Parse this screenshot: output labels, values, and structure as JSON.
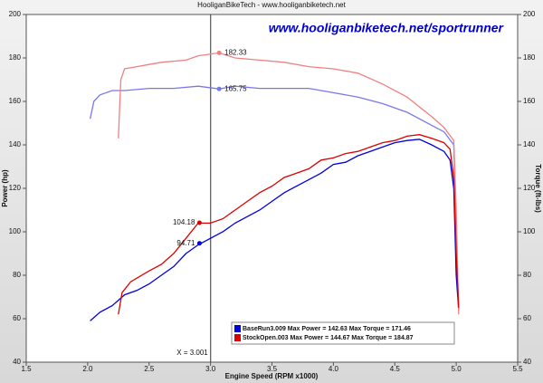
{
  "chart_data": {
    "type": "line",
    "title": "HooliganBikeTech - www.hooliganbiketech.net",
    "watermark": "www.hooliganbiketech.net/sportrunner",
    "x_label": "Engine Speed (RPM x1000)",
    "y_label": "Power (hp)",
    "y2_label": "Torque (ft-lbs)",
    "xlim": [
      1.5,
      5.5
    ],
    "xticks": [
      1.5,
      {
        "value": 2,
        "label": "2.0"
      },
      2.5,
      {
        "value": 3,
        "label": "3.0"
      },
      3.5,
      {
        "value": 4,
        "label": "4.0"
      },
      4.5,
      {
        "value": 5,
        "label": "5.0"
      },
      5.5
    ],
    "ylim": [
      40,
      200
    ],
    "yticks": [
      40,
      60,
      80,
      100,
      120,
      140,
      160,
      180,
      200
    ],
    "y2lim": [
      40,
      200
    ],
    "y2ticks": [
      40,
      60,
      80,
      100,
      120,
      140,
      160,
      180,
      200
    ],
    "cursor": {
      "x": 3.001,
      "label": "X = 3.001"
    },
    "series": [
      {
        "name": "BaseRun3.009 Max Power = 142.63 Max Torque = 171.46",
        "color": "#0000dd",
        "torque_color": "#7878ee",
        "x": [
          2.02,
          2.1,
          2.2,
          2.3,
          2.4,
          2.5,
          2.6,
          2.7,
          2.8,
          2.9,
          3.0,
          3.1,
          3.2,
          3.3,
          3.4,
          3.5,
          3.6,
          3.7,
          3.8,
          3.9,
          4.0,
          4.1,
          4.2,
          4.3,
          4.4,
          4.5,
          4.6,
          4.7,
          4.8,
          4.9,
          4.95,
          4.98,
          5.0,
          5.02
        ],
        "values": [
          59,
          63,
          66,
          71,
          73,
          76,
          80,
          84,
          90,
          94,
          97,
          100,
          104,
          107,
          110,
          114,
          118,
          121,
          124,
          127,
          131,
          132,
          135,
          137,
          139,
          141,
          142,
          142.6,
          140,
          137,
          133,
          120,
          80,
          64
        ],
        "torque_x": [
          2.02,
          2.05,
          2.1,
          2.2,
          2.3,
          2.5,
          2.7,
          2.9,
          3.07,
          3.2,
          3.4,
          3.6,
          3.8,
          4.0,
          4.2,
          4.4,
          4.6,
          4.8,
          4.9,
          4.98,
          5.0,
          5.02
        ],
        "torque_values": [
          152,
          160,
          163,
          165,
          165,
          166,
          166,
          167,
          165.75,
          167,
          166,
          166,
          166,
          164,
          162,
          159,
          155,
          149,
          146,
          140,
          100,
          65
        ]
      },
      {
        "name": "StockOpen.003 Max Power = 144.67 Max Torque = 184.87",
        "color": "#dd0000",
        "torque_color": "#f08080",
        "x": [
          2.25,
          2.28,
          2.35,
          2.5,
          2.6,
          2.7,
          2.8,
          2.9,
          3.0,
          3.1,
          3.2,
          3.3,
          3.4,
          3.5,
          3.6,
          3.7,
          3.8,
          3.9,
          4.0,
          4.1,
          4.2,
          4.3,
          4.4,
          4.5,
          4.6,
          4.7,
          4.8,
          4.9,
          4.95,
          4.98,
          5.0,
          5.02
        ],
        "values": [
          62,
          72,
          77,
          82,
          85,
          90,
          97,
          104,
          104,
          106,
          110,
          114,
          118,
          121,
          125,
          127,
          129,
          133,
          134,
          136,
          137,
          139,
          141,
          142,
          144,
          144.7,
          143,
          141,
          138,
          125,
          90,
          65
        ],
        "torque_x": [
          2.25,
          2.27,
          2.3,
          2.4,
          2.5,
          2.6,
          2.8,
          2.9,
          3.07,
          3.2,
          3.4,
          3.6,
          3.8,
          4.0,
          4.2,
          4.4,
          4.6,
          4.8,
          4.9,
          4.98,
          5.0,
          5.02
        ],
        "torque_values": [
          143,
          170,
          175,
          176,
          177,
          178,
          179,
          181,
          182.33,
          180,
          179,
          178,
          176,
          175,
          173,
          168,
          162,
          153,
          148,
          142,
          110,
          62
        ]
      }
    ],
    "markers": [
      {
        "x": 2.91,
        "value": 104.18,
        "color": "#dd0000",
        "axis": "y"
      },
      {
        "x": 2.91,
        "value": 94.71,
        "color": "#0000dd",
        "axis": "y"
      },
      {
        "x": 3.07,
        "value": 182.33,
        "color": "#f08080",
        "axis": "y2"
      },
      {
        "x": 3.07,
        "value": 165.75,
        "color": "#7878ee",
        "axis": "y2"
      }
    ]
  }
}
